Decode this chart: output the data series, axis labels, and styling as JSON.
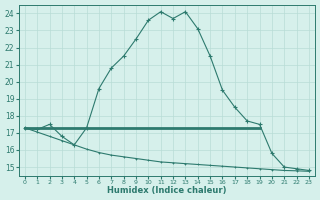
{
  "xlabel": "Humidex (Indice chaleur)",
  "bg_color": "#d6f0eb",
  "grid_color": "#b8ddd6",
  "line_color": "#2d7a6e",
  "xlim": [
    -0.5,
    23.5
  ],
  "ylim": [
    14.5,
    24.5
  ],
  "xticks": [
    0,
    1,
    2,
    3,
    4,
    5,
    6,
    7,
    8,
    9,
    10,
    11,
    12,
    13,
    14,
    15,
    16,
    17,
    18,
    19,
    20,
    21,
    22,
    23
  ],
  "yticks": [
    15,
    16,
    17,
    18,
    19,
    20,
    21,
    22,
    23,
    24
  ],
  "curve1_x": [
    0,
    1,
    2,
    3,
    4,
    5,
    6,
    7,
    8,
    9,
    10,
    11,
    12,
    13,
    14,
    15,
    16,
    17,
    18,
    19,
    20,
    21,
    22,
    23
  ],
  "curve1_y": [
    17.3,
    17.2,
    17.5,
    16.8,
    16.3,
    17.3,
    19.6,
    20.8,
    21.5,
    22.5,
    23.6,
    24.1,
    23.7,
    24.1,
    23.1,
    21.5,
    19.5,
    18.5,
    17.7,
    17.5,
    15.8,
    15.0,
    14.9,
    14.8
  ],
  "curve2_x": [
    0,
    19
  ],
  "curve2_y": [
    17.3,
    17.3
  ],
  "curve3_x": [
    0,
    1,
    2,
    3,
    4,
    5,
    6,
    7,
    8,
    9,
    10,
    11,
    12,
    13,
    14,
    15,
    16,
    17,
    18,
    19,
    20,
    21,
    22,
    23
  ],
  "curve3_y": [
    17.3,
    17.05,
    16.8,
    16.55,
    16.3,
    16.05,
    15.85,
    15.7,
    15.6,
    15.5,
    15.4,
    15.3,
    15.25,
    15.2,
    15.15,
    15.1,
    15.05,
    15.0,
    14.95,
    14.9,
    14.85,
    14.8,
    14.78,
    14.75
  ]
}
